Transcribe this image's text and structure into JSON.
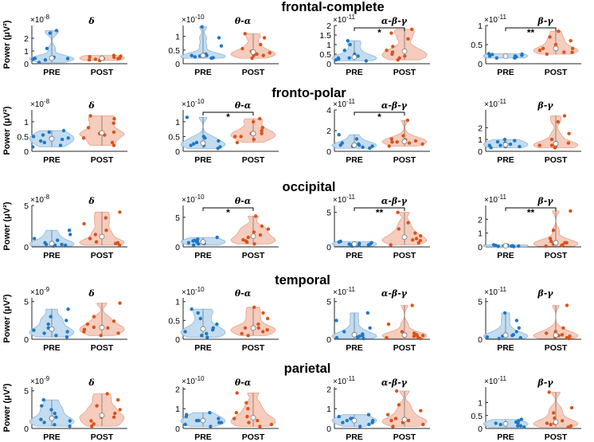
{
  "figure": {
    "y_label": "Power (μV²)",
    "categories": [
      "PRE",
      "POST"
    ],
    "colors": {
      "pre_fill": "#bcd8ee",
      "pre_edge": "#8fb8dd",
      "pre_dot": "#1f77c4",
      "post_fill": "#f4c7b6",
      "post_edge": "#e3a58f",
      "post_dot": "#d95319",
      "median_dot": "#ffffff",
      "median_edge": "#777777"
    },
    "significance_marker": "shown as horizontal bracket with asterisks between PRE and POST"
  },
  "chart_data": [
    {
      "type": "violin",
      "row": "frontal-complete",
      "band": "δ",
      "scale_label": "×10",
      "scale_exp": "-8",
      "ylim": [
        0,
        3
      ],
      "yticks": [
        0,
        1,
        2
      ],
      "significance": "",
      "series": [
        {
          "name": "PRE",
          "values": [
            0.35,
            0.4,
            0.42,
            0.5,
            1.2,
            2.4,
            2.6,
            0.1,
            0.3,
            0.45
          ]
        },
        {
          "name": "POST",
          "values": [
            0.3,
            0.35,
            0.4,
            0.45,
            0.5,
            0.55,
            0.6,
            0.65,
            0.25,
            0.4
          ]
        }
      ]
    },
    {
      "type": "violin",
      "row": "frontal-complete",
      "band": "θ-α",
      "scale_label": "×10",
      "scale_exp": "-10",
      "ylim": [
        0,
        1.4
      ],
      "yticks": [
        0,
        0.5,
        1
      ],
      "significance": "",
      "series": [
        {
          "name": "PRE",
          "values": [
            0.2,
            0.25,
            0.28,
            0.3,
            0.35,
            0.65,
            0.95,
            1.35,
            0.22,
            0.3
          ]
        },
        {
          "name": "POST",
          "values": [
            0.2,
            0.3,
            0.35,
            0.4,
            0.45,
            0.55,
            0.7,
            0.95,
            1.1,
            0.3
          ]
        }
      ]
    },
    {
      "type": "violin",
      "row": "frontal-complete",
      "band": "α-β-γ",
      "scale_label": "×10",
      "scale_exp": "-11",
      "ylim": [
        0,
        2
      ],
      "yticks": [
        0,
        0.5,
        1,
        1.5,
        2
      ],
      "significance": "*",
      "series": [
        {
          "name": "PRE",
          "values": [
            0.15,
            0.2,
            0.25,
            0.3,
            0.4,
            0.7,
            1.0,
            1.2,
            0.3,
            0.5
          ]
        },
        {
          "name": "POST",
          "values": [
            0.2,
            0.3,
            0.4,
            0.5,
            0.7,
            0.9,
            1.3,
            1.6,
            1.8,
            0.6
          ]
        }
      ]
    },
    {
      "type": "violin",
      "row": "frontal-complete",
      "band": "β-γ",
      "scale_label": "×10",
      "scale_exp": "-11",
      "ylim": [
        0,
        1
      ],
      "yticks": [
        0,
        0.5,
        1
      ],
      "significance": "**",
      "series": [
        {
          "name": "PRE",
          "values": [
            0.15,
            0.18,
            0.2,
            0.22,
            0.24,
            0.26,
            0.2,
            0.15,
            0.25,
            0.2
          ]
        },
        {
          "name": "POST",
          "values": [
            0.25,
            0.3,
            0.35,
            0.4,
            0.5,
            0.6,
            0.7,
            0.85,
            0.3,
            0.4
          ]
        }
      ]
    },
    {
      "type": "violin",
      "row": "fronto-polar",
      "band": "δ",
      "scale_label": "×10",
      "scale_exp": "-8",
      "ylim": [
        0,
        1.4
      ],
      "yticks": [
        0,
        0.5,
        1
      ],
      "significance": "",
      "series": [
        {
          "name": "PRE",
          "values": [
            0.15,
            0.2,
            0.3,
            0.35,
            0.45,
            0.55,
            0.65,
            0.7,
            0.4,
            0.5
          ]
        },
        {
          "name": "POST",
          "values": [
            0.2,
            0.3,
            0.45,
            0.55,
            0.65,
            0.8,
            0.95,
            1.1,
            1.2,
            0.6
          ]
        }
      ]
    },
    {
      "type": "violin",
      "row": "fronto-polar",
      "band": "θ-α",
      "scale_label": "×10",
      "scale_exp": "-10",
      "ylim": [
        0,
        1.4
      ],
      "yticks": [
        0,
        0.5,
        1
      ],
      "significance": "*",
      "series": [
        {
          "name": "PRE",
          "values": [
            0.1,
            0.15,
            0.2,
            0.25,
            0.3,
            0.35,
            0.45,
            1.15,
            0.5,
            0.2
          ]
        },
        {
          "name": "POST",
          "values": [
            0.3,
            0.4,
            0.5,
            0.6,
            0.7,
            0.8,
            1.0,
            1.1,
            0.5,
            0.6
          ]
        }
      ]
    },
    {
      "type": "violin",
      "row": "fronto-polar",
      "band": "α-β-γ",
      "scale_label": "×10",
      "scale_exp": "-11",
      "ylim": [
        0,
        4
      ],
      "yticks": [
        0,
        2,
        4
      ],
      "significance": "*",
      "series": [
        {
          "name": "PRE",
          "values": [
            0.3,
            0.4,
            0.5,
            0.6,
            0.7,
            0.8,
            1.2,
            1.6,
            0.5,
            0.6
          ]
        },
        {
          "name": "POST",
          "values": [
            0.5,
            0.7,
            0.8,
            0.9,
            1.0,
            1.2,
            1.5,
            3.0,
            0.9,
            1.1
          ]
        }
      ]
    },
    {
      "type": "violin",
      "row": "fronto-polar",
      "band": "β-γ",
      "scale_label": "×10",
      "scale_exp": "-11",
      "ylim": [
        0,
        3.5
      ],
      "yticks": [
        0,
        1,
        2
      ],
      "significance": "",
      "series": [
        {
          "name": "PRE",
          "values": [
            0.3,
            0.4,
            0.5,
            0.6,
            0.7,
            0.8,
            0.9,
            1.0,
            0.4,
            0.5
          ]
        },
        {
          "name": "POST",
          "values": [
            0.3,
            0.4,
            0.5,
            0.6,
            0.7,
            1.0,
            1.5,
            2.5,
            3.0,
            0.5
          ]
        }
      ]
    },
    {
      "type": "violin",
      "row": "occipital",
      "band": "δ",
      "scale_label": "×10",
      "scale_exp": "-8",
      "ylim": [
        0,
        5
      ],
      "yticks": [
        0,
        5
      ],
      "significance": "",
      "series": [
        {
          "name": "PRE",
          "values": [
            0.1,
            0.2,
            0.3,
            0.5,
            0.8,
            1.0,
            1.5,
            2.0,
            0.2,
            0.3
          ]
        },
        {
          "name": "POST",
          "values": [
            0.2,
            0.4,
            0.6,
            1.0,
            1.5,
            2.0,
            2.8,
            3.5,
            4.2,
            0.5
          ]
        }
      ]
    },
    {
      "type": "violin",
      "row": "occipital",
      "band": "θ-α",
      "scale_label": "×10",
      "scale_exp": "-10",
      "ylim": [
        0,
        7
      ],
      "yticks": [
        0,
        5
      ],
      "significance": "*",
      "series": [
        {
          "name": "PRE",
          "values": [
            0.3,
            0.5,
            0.7,
            0.9,
            1.1,
            1.3,
            1.6,
            0.6,
            0.8,
            1.0
          ]
        },
        {
          "name": "POST",
          "values": [
            0.5,
            0.8,
            1.2,
            1.6,
            2.0,
            2.5,
            3.0,
            3.5,
            5.2,
            1.0
          ]
        }
      ]
    },
    {
      "type": "violin",
      "row": "occipital",
      "band": "α-β-γ",
      "scale_label": "×10",
      "scale_exp": "-11",
      "ylim": [
        0,
        6
      ],
      "yticks": [
        0,
        5
      ],
      "significance": "**",
      "series": [
        {
          "name": "PRE",
          "values": [
            0.1,
            0.2,
            0.3,
            0.4,
            0.5,
            0.6,
            0.7,
            0.8,
            0.3,
            0.4
          ]
        },
        {
          "name": "POST",
          "values": [
            0.3,
            0.6,
            0.9,
            1.2,
            1.6,
            2.0,
            2.6,
            3.5,
            5.0,
            1.0
          ]
        }
      ]
    },
    {
      "type": "violin",
      "row": "occipital",
      "band": "β-γ",
      "scale_label": "×10",
      "scale_exp": "-11",
      "ylim": [
        0,
        3
      ],
      "yticks": [
        0,
        1,
        2
      ],
      "significance": "**",
      "series": [
        {
          "name": "PRE",
          "values": [
            0.02,
            0.04,
            0.06,
            0.08,
            0.1,
            0.12,
            0.15,
            0.1,
            0.05,
            0.08
          ]
        },
        {
          "name": "POST",
          "values": [
            0.05,
            0.1,
            0.15,
            0.2,
            0.3,
            0.4,
            0.6,
            1.2,
            2.6,
            0.3
          ]
        }
      ]
    },
    {
      "type": "violin",
      "row": "temporal",
      "band": "δ",
      "scale_label": "×10",
      "scale_exp": "-9",
      "ylim": [
        0,
        5.5
      ],
      "yticks": [
        0,
        5
      ],
      "significance": "",
      "series": [
        {
          "name": "PRE",
          "values": [
            0.3,
            0.5,
            0.8,
            1.0,
            1.5,
            2.0,
            2.5,
            3.0,
            4.0,
            1.2
          ]
        },
        {
          "name": "POST",
          "values": [
            0.5,
            0.8,
            1.0,
            1.3,
            1.6,
            2.0,
            2.4,
            3.0,
            4.8,
            1.5
          ]
        }
      ]
    },
    {
      "type": "violin",
      "row": "temporal",
      "band": "θ-α",
      "scale_label": "×10",
      "scale_exp": "-10",
      "ylim": [
        0,
        1.1
      ],
      "yticks": [
        0,
        0.5,
        1
      ],
      "significance": "",
      "series": [
        {
          "name": "PRE",
          "values": [
            0.05,
            0.1,
            0.15,
            0.2,
            0.3,
            0.4,
            0.55,
            0.7,
            0.8,
            0.25
          ]
        },
        {
          "name": "POST",
          "values": [
            0.1,
            0.15,
            0.2,
            0.25,
            0.3,
            0.4,
            0.55,
            0.7,
            0.85,
            0.3
          ]
        }
      ]
    },
    {
      "type": "violin",
      "row": "temporal",
      "band": "α-β-γ",
      "scale_label": "×10",
      "scale_exp": "-11",
      "ylim": [
        0,
        5.5
      ],
      "yticks": [
        0,
        5
      ],
      "significance": "",
      "series": [
        {
          "name": "PRE",
          "values": [
            0.1,
            0.2,
            0.3,
            0.4,
            0.5,
            0.7,
            1.0,
            1.5,
            2.5,
            3.5
          ]
        },
        {
          "name": "POST",
          "values": [
            0.1,
            0.2,
            0.3,
            0.4,
            0.5,
            0.6,
            0.8,
            1.0,
            2.0,
            4.5
          ]
        }
      ]
    },
    {
      "type": "violin",
      "row": "temporal",
      "band": "β-γ",
      "scale_label": "×10",
      "scale_exp": "-11",
      "ylim": [
        0,
        5.5
      ],
      "yticks": [
        0,
        5
      ],
      "significance": "",
      "series": [
        {
          "name": "PRE",
          "values": [
            0.1,
            0.2,
            0.3,
            0.4,
            0.5,
            0.6,
            1.0,
            1.5,
            2.5,
            3.5
          ]
        },
        {
          "name": "POST",
          "values": [
            0.1,
            0.2,
            0.3,
            0.4,
            0.5,
            0.6,
            0.8,
            1.0,
            1.5,
            4.5
          ]
        }
      ]
    },
    {
      "type": "violin",
      "row": "parietal",
      "band": "δ",
      "scale_label": "×10",
      "scale_exp": "-9",
      "ylim": [
        0,
        5.5
      ],
      "yticks": [
        0,
        5
      ],
      "significance": "",
      "series": [
        {
          "name": "PRE",
          "values": [
            0.3,
            0.5,
            0.8,
            1.0,
            1.5,
            2.0,
            2.5,
            3.0,
            3.8,
            1.2
          ]
        },
        {
          "name": "POST",
          "values": [
            0.3,
            0.6,
            1.0,
            1.5,
            2.0,
            2.5,
            3.0,
            3.8,
            4.6,
            1.5
          ]
        }
      ]
    },
    {
      "type": "violin",
      "row": "parietal",
      "band": "θ-α",
      "scale_label": "×10",
      "scale_exp": "-10",
      "ylim": [
        0,
        2.1
      ],
      "yticks": [
        0,
        1,
        2
      ],
      "significance": "",
      "series": [
        {
          "name": "PRE",
          "values": [
            0.1,
            0.2,
            0.3,
            0.4,
            0.5,
            0.6,
            0.7,
            0.8,
            0.3,
            0.4
          ]
        },
        {
          "name": "POST",
          "values": [
            0.1,
            0.2,
            0.3,
            0.4,
            0.6,
            0.8,
            1.0,
            1.3,
            1.8,
            0.5
          ]
        }
      ]
    },
    {
      "type": "violin",
      "row": "parietal",
      "band": "α-β-γ",
      "scale_label": "×10",
      "scale_exp": "-11",
      "ylim": [
        0,
        2.1
      ],
      "yticks": [
        0,
        1,
        2
      ],
      "significance": "",
      "series": [
        {
          "name": "PRE",
          "values": [
            0.1,
            0.2,
            0.3,
            0.4,
            0.5,
            0.6,
            0.7,
            0.3,
            0.4,
            0.5
          ]
        },
        {
          "name": "POST",
          "values": [
            0.1,
            0.2,
            0.3,
            0.4,
            0.5,
            0.7,
            0.9,
            1.2,
            1.9,
            0.4
          ]
        }
      ]
    },
    {
      "type": "violin",
      "row": "parietal",
      "band": "β-γ",
      "scale_label": "×10",
      "scale_exp": "-11",
      "ylim": [
        0,
        1.6
      ],
      "yticks": [
        0,
        0.5,
        1
      ],
      "significance": "",
      "series": [
        {
          "name": "PRE",
          "values": [
            0.05,
            0.1,
            0.15,
            0.2,
            0.25,
            0.3,
            0.35,
            0.2,
            0.1,
            0.15
          ]
        },
        {
          "name": "POST",
          "values": [
            0.05,
            0.1,
            0.15,
            0.2,
            0.3,
            0.4,
            0.6,
            0.8,
            1.4,
            0.2
          ]
        }
      ]
    }
  ],
  "rows": [
    {
      "title": "frontal-complete"
    },
    {
      "title": "fronto-polar"
    },
    {
      "title": "occipital"
    },
    {
      "title": "temporal"
    },
    {
      "title": "parietal"
    }
  ]
}
